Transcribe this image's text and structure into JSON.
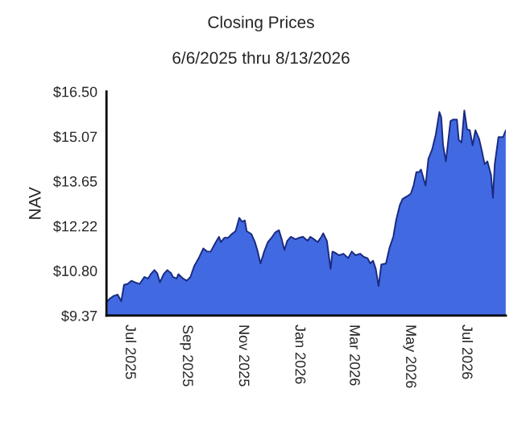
{
  "chart_data": {
    "type": "area",
    "title": "Closing Prices",
    "subtitle": "6/6/2025 thru 8/13/2026",
    "ylabel": "NAV",
    "x": [
      "2025-06-07",
      "2025-06-10",
      "2025-06-14",
      "2025-06-18",
      "2025-06-22",
      "2025-06-25",
      "2025-06-29",
      "2025-07-03",
      "2025-07-07",
      "2025-07-12",
      "2025-07-17",
      "2025-07-21",
      "2025-07-24",
      "2025-07-28",
      "2025-07-31",
      "2025-08-03",
      "2025-08-07",
      "2025-08-11",
      "2025-08-15",
      "2025-08-17",
      "2025-08-21",
      "2025-08-23",
      "2025-08-28",
      "2025-09-01",
      "2025-09-05",
      "2025-09-09",
      "2025-09-14",
      "2025-09-19",
      "2025-09-23",
      "2025-09-27",
      "2025-10-02",
      "2025-10-06",
      "2025-10-08",
      "2025-10-12",
      "2025-10-16",
      "2025-10-20",
      "2025-10-24",
      "2025-10-28",
      "2025-10-31",
      "2025-11-03",
      "2025-11-05",
      "2025-11-10",
      "2025-11-14",
      "2025-11-17",
      "2025-11-20",
      "2025-11-24",
      "2025-11-28",
      "2025-12-02",
      "2025-12-06",
      "2025-12-10",
      "2025-12-13",
      "2025-12-16",
      "2025-12-19",
      "2025-12-23",
      "2025-12-28",
      "2026-01-01",
      "2026-01-05",
      "2026-01-10",
      "2026-01-13",
      "2026-01-17",
      "2026-01-21",
      "2026-01-25",
      "2026-01-27",
      "2026-01-31",
      "2026-02-04",
      "2026-02-06",
      "2026-02-09",
      "2026-02-13",
      "2026-02-18",
      "2026-02-23",
      "2026-02-27",
      "2026-03-03",
      "2026-03-08",
      "2026-03-12",
      "2026-03-16",
      "2026-03-19",
      "2026-03-22",
      "2026-03-25",
      "2026-03-28",
      "2026-03-31",
      "2026-04-05",
      "2026-04-09",
      "2026-04-13",
      "2026-04-16",
      "2026-04-20",
      "2026-04-23",
      "2026-04-28",
      "2026-05-02",
      "2026-05-05",
      "2026-05-08",
      "2026-05-11",
      "2026-05-13",
      "2026-05-18",
      "2026-05-21",
      "2026-05-25",
      "2026-05-29",
      "2026-06-02",
      "2026-06-04",
      "2026-06-06",
      "2026-06-09",
      "2026-06-12",
      "2026-06-14",
      "2026-06-17",
      "2026-06-21",
      "2026-06-23",
      "2026-06-26",
      "2026-06-29",
      "2026-07-02",
      "2026-07-05",
      "2026-07-08",
      "2026-07-11",
      "2026-07-15",
      "2026-07-18",
      "2026-07-21",
      "2026-07-24",
      "2026-07-28",
      "2026-07-30",
      "2026-08-01",
      "2026-08-05",
      "2026-08-07",
      "2026-08-10",
      "2026-08-13"
    ],
    "series": [
      {
        "color": "#4169e1",
        "values": [
          9.83,
          9.92,
          10.0,
          10.04,
          9.83,
          10.35,
          10.38,
          10.48,
          10.43,
          10.38,
          10.6,
          10.55,
          10.69,
          10.82,
          10.72,
          10.43,
          10.69,
          10.82,
          10.72,
          10.6,
          10.55,
          10.69,
          10.55,
          10.48,
          10.6,
          10.94,
          11.2,
          11.51,
          11.41,
          11.41,
          11.68,
          11.88,
          11.71,
          11.85,
          11.85,
          11.97,
          12.06,
          12.48,
          12.36,
          12.4,
          12.06,
          11.97,
          11.71,
          11.41,
          11.03,
          11.41,
          11.71,
          11.85,
          12.02,
          12.09,
          11.8,
          11.46,
          11.75,
          11.88,
          11.8,
          11.85,
          11.88,
          11.75,
          11.88,
          11.8,
          11.71,
          11.88,
          11.99,
          11.75,
          10.86,
          11.41,
          11.37,
          11.29,
          11.34,
          11.2,
          11.41,
          11.29,
          11.34,
          11.24,
          11.2,
          11.03,
          11.12,
          10.86,
          10.31,
          11.0,
          11.03,
          11.54,
          11.88,
          12.4,
          12.88,
          13.08,
          13.17,
          13.25,
          13.51,
          13.94,
          13.94,
          14.02,
          13.51,
          14.36,
          14.65,
          15.13,
          15.85,
          15.68,
          14.79,
          14.28,
          15.05,
          15.56,
          15.61,
          15.61,
          14.96,
          14.88,
          15.9,
          15.3,
          15.27,
          14.79,
          15.27,
          15.0,
          14.62,
          14.19,
          14.28,
          13.85,
          13.12,
          14.19,
          15.05,
          15.05,
          15.05,
          15.27
        ]
      }
    ],
    "xlim": [
      "2025-06-06",
      "2026-08-13"
    ],
    "xticks": [
      {
        "value": "2025-07-01",
        "label": "Jul 2025"
      },
      {
        "value": "2025-09-01",
        "label": "Sep 2025"
      },
      {
        "value": "2025-11-01",
        "label": "Nov 2025"
      },
      {
        "value": "2026-01-01",
        "label": "Jan 2026"
      },
      {
        "value": "2026-03-01",
        "label": "Mar 2026"
      },
      {
        "value": "2026-05-01",
        "label": "May 2026"
      },
      {
        "value": "2026-07-01",
        "label": "Jul 2026"
      }
    ],
    "ylim": [
      9.37,
      16.5
    ],
    "yticks": [
      {
        "value": 9.37,
        "label": "$9.37"
      },
      {
        "value": 10.8,
        "label": "$10.80"
      },
      {
        "value": 12.22,
        "label": "$12.22"
      },
      {
        "value": 13.65,
        "label": "$13.65"
      },
      {
        "value": 15.07,
        "label": "$15.07"
      },
      {
        "value": 16.5,
        "label": "$16.50"
      }
    ],
    "grid": false,
    "legend": false
  }
}
